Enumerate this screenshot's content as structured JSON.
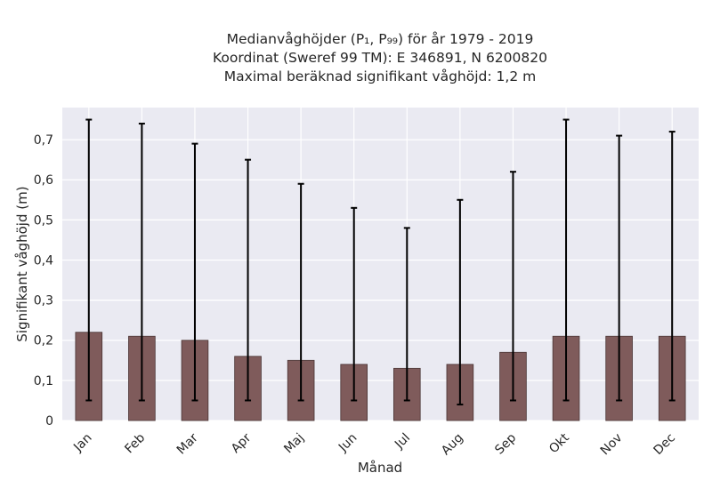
{
  "chart_data": {
    "type": "bar",
    "title_lines": [
      "Medianvåghöjder (P₁, P₉₉) för år 1979 - 2019",
      "Koordinat (Sweref 99 TM): E 346891, N 6200820",
      "Maximal beräknad signifikant våghöjd: 1,2 m"
    ],
    "xlabel": "Månad",
    "ylabel": "Signifikant våghöjd (m)",
    "categories": [
      "Jan",
      "Feb",
      "Mar",
      "Apr",
      "Maj",
      "Jun",
      "Jul",
      "Aug",
      "Sep",
      "Okt",
      "Nov",
      "Dec"
    ],
    "values": [
      0.22,
      0.21,
      0.2,
      0.16,
      0.15,
      0.14,
      0.13,
      0.14,
      0.17,
      0.21,
      0.21,
      0.21
    ],
    "error_low": [
      0.05,
      0.05,
      0.05,
      0.05,
      0.05,
      0.05,
      0.05,
      0.04,
      0.05,
      0.05,
      0.05,
      0.05
    ],
    "error_high": [
      0.75,
      0.74,
      0.69,
      0.65,
      0.59,
      0.53,
      0.48,
      0.55,
      0.62,
      0.75,
      0.71,
      0.72
    ],
    "ylim": [
      0,
      0.78
    ],
    "yticks": [
      0,
      0.1,
      0.2,
      0.3,
      0.4,
      0.5,
      0.6,
      0.7
    ],
    "ytick_labels": [
      "0",
      "0,1",
      "0,2",
      "0,3",
      "0,4",
      "0,5",
      "0,6",
      "0,7"
    ],
    "grid": true,
    "colors": {
      "bar": "#7f5b5b",
      "bar_edge": "#4a3535",
      "error": "#000000",
      "plot_bg": "#eaeaf2",
      "grid": "#ffffff"
    }
  }
}
